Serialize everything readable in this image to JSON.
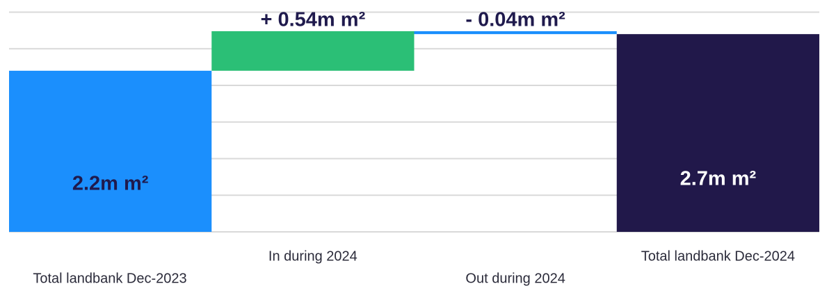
{
  "chart_data": {
    "type": "waterfall",
    "categories": [
      "Total landbank Dec-2023",
      "In during 2024",
      "Out during 2024",
      "Total landbank Dec-2024"
    ],
    "values": [
      2.2,
      0.54,
      -0.04,
      2.7
    ],
    "value_labels": [
      "2.2m m²",
      "+ 0.54m m²",
      "- 0.04m m²",
      "2.7m m²"
    ],
    "colors": [
      "#1b8ffd",
      "#2bbf76",
      "#1b8ffd",
      "#21184a"
    ],
    "ylim": [
      0,
      3
    ],
    "yticks": [
      0,
      0.5,
      1,
      1.5,
      2,
      2.5,
      3
    ],
    "grid": true
  }
}
